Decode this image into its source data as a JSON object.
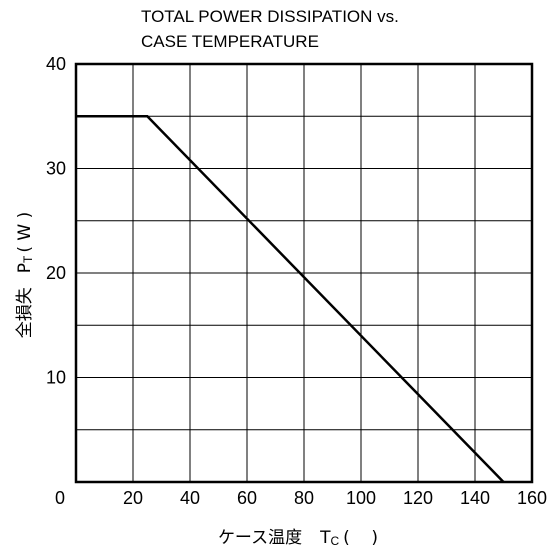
{
  "chart_data": {
    "type": "line",
    "title": [
      "TOTAL POWER DISSIPATION vs.",
      "CASE TEMPERATURE"
    ],
    "xlabel": {
      "main": "ケース温度",
      "symbol": "T",
      "subscript": "C",
      "unit": "(    )"
    },
    "ylabel": {
      "main": "全損失",
      "symbol": "P",
      "subscript": "T",
      "unit": "( W )"
    },
    "xlim": [
      0,
      160
    ],
    "ylim": [
      0,
      40
    ],
    "x_ticks": [
      0,
      20,
      40,
      60,
      80,
      100,
      120,
      140,
      160
    ],
    "y_ticks": [
      0,
      10,
      20,
      30,
      40
    ],
    "x_tick_labels": [
      "0",
      "20",
      "40",
      "60",
      "80",
      "100",
      "120",
      "140",
      "160"
    ],
    "y_tick_labels": [
      "",
      "10",
      "20",
      "30",
      "40"
    ],
    "grid": true,
    "grid_y_step": 5,
    "series": [
      {
        "x": [
          0,
          25,
          150
        ],
        "y": [
          35,
          35,
          0
        ]
      }
    ]
  }
}
